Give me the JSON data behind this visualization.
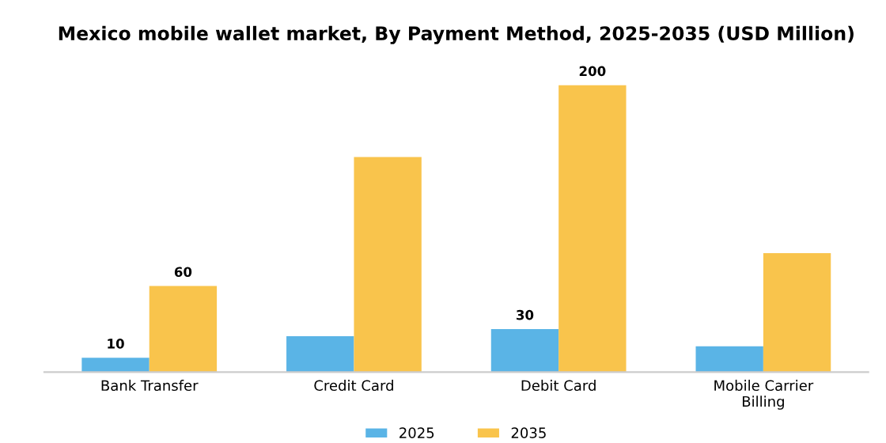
{
  "chart_data": {
    "type": "bar",
    "title": "Mexico mobile wallet market, By Payment Method, 2025-2035 (USD Million)",
    "categories": [
      "Bank Transfer",
      "Credit Card",
      "Debit Card",
      "Mobile Carrier\nBilling"
    ],
    "series": [
      {
        "name": "2025",
        "color": "#5ab4e6",
        "values": [
          10,
          25,
          30,
          18
        ],
        "value_labels": [
          "10",
          null,
          "30",
          null
        ]
      },
      {
        "name": "2035",
        "color": "#f9c44c",
        "values": [
          60,
          150,
          200,
          83
        ],
        "value_labels": [
          "60",
          null,
          "200",
          null
        ]
      }
    ],
    "legend": "bottom",
    "grid": false
  }
}
